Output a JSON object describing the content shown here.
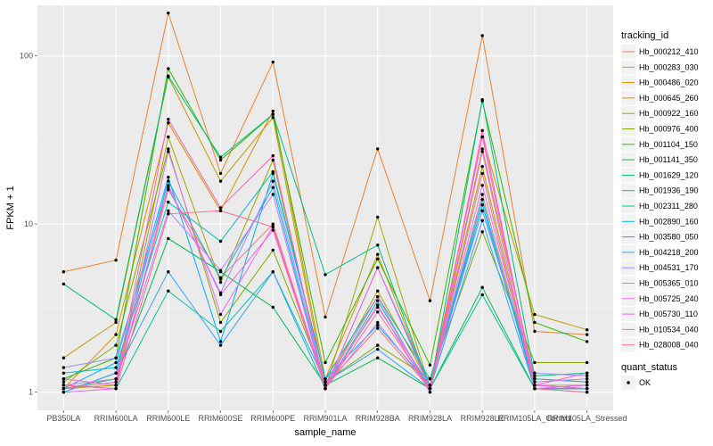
{
  "chart_data": {
    "type": "line",
    "title": "",
    "xlabel": "sample_name",
    "ylabel": "FPKM + 1",
    "yscale": "log10",
    "ylim": [
      0.78,
      200
    ],
    "y_ticks": [
      {
        "value": 1,
        "label": "1"
      },
      {
        "value": 10,
        "label": "10"
      },
      {
        "value": 100,
        "label": "100"
      }
    ],
    "grid": true,
    "legend_position": "right",
    "categories": [
      "PB350LA",
      "RRIM600LA",
      "RRIM600LE",
      "RRIM600SE",
      "RRIM600PE",
      "RRIM901LA",
      "RRIM928BA",
      "RRIM928LA",
      "RRIM928LE",
      "RRIM105LA_Control",
      "RRIM105LA_Stressed"
    ],
    "category_labels": [
      "PB350LA",
      "RRIM600LA",
      "RRIM600LE",
      "RRIM600SE",
      "RRIM600PE",
      "RRIM901LA",
      "RRIM928BA",
      "RRIM928LA",
      "RRIM928LE",
      "RRIM105LA_Control",
      "RRIM105LA_Stressed"
    ],
    "legend_title": "tracking_id",
    "quant_status": {
      "title": "quant_status",
      "entries": [
        "OK"
      ]
    },
    "series": [
      {
        "name": "Hb_000212_410",
        "color": "#F8766D",
        "values": [
          1.05,
          1.1,
          16,
          4.8,
          10,
          1.1,
          2.4,
          1.05,
          15,
          1.1,
          1.1
        ]
      },
      {
        "name": "Hb_000283_030",
        "color": "#EA8331",
        "values": [
          5.2,
          6.1,
          180,
          20,
          92,
          2.8,
          28,
          3.5,
          132,
          2.3,
          2.2
        ]
      },
      {
        "name": "Hb_000486_020",
        "color": "#D89000",
        "values": [
          1.05,
          2.2,
          40,
          12,
          47,
          1.2,
          6.6,
          1.05,
          28,
          1.2,
          1.15
        ]
      },
      {
        "name": "Hb_000645_260",
        "color": "#C09B00",
        "values": [
          1.6,
          2.6,
          75,
          18,
          43,
          1.1,
          4,
          1.1,
          33,
          2.9,
          2.35
        ]
      },
      {
        "name": "Hb_000922_160",
        "color": "#A3A500",
        "values": [
          1.05,
          1.1,
          33,
          4.5,
          24,
          1.05,
          11,
          1.05,
          22,
          1.1,
          1.05
        ]
      },
      {
        "name": "Hb_000976_400",
        "color": "#7CAE00",
        "values": [
          1.15,
          1.9,
          28,
          2.6,
          7,
          1.15,
          1.9,
          1.2,
          9,
          1.5,
          1.5
        ]
      },
      {
        "name": "Hb_001104_150",
        "color": "#39B600",
        "values": [
          1.2,
          1.6,
          84,
          24,
          45,
          1.5,
          6.2,
          1.45,
          54,
          2.6,
          2.0
        ]
      },
      {
        "name": "Hb_001141_350",
        "color": "#00BB4E",
        "values": [
          1.05,
          1.2,
          8.2,
          5.2,
          3.2,
          1.1,
          1.6,
          1.05,
          4.2,
          1.05,
          1.05
        ]
      },
      {
        "name": "Hb_001629_120",
        "color": "#00BF7D",
        "values": [
          4.4,
          2.7,
          76,
          25,
          45,
          5,
          7.5,
          1.05,
          55,
          1.25,
          1.3
        ]
      },
      {
        "name": "Hb_001936_190",
        "color": "#00C1A3",
        "values": [
          1.1,
          1.05,
          4,
          2.3,
          5.2,
          1.05,
          3.5,
          1.05,
          3.8,
          1.05,
          1.05
        ]
      },
      {
        "name": "Hb_002311_280",
        "color": "#00BFC4",
        "values": [
          1.3,
          1.4,
          13.5,
          7.9,
          20.5,
          1.2,
          3.7,
          1.2,
          12,
          1.2,
          1.15
        ]
      },
      {
        "name": "Hb_002890_160",
        "color": "#00BAE0",
        "values": [
          1.0,
          1.3,
          18,
          4.7,
          16.5,
          1.05,
          5.5,
          1.1,
          14,
          1.05,
          1.1
        ]
      },
      {
        "name": "Hb_003580_050",
        "color": "#00B0F6",
        "values": [
          1.05,
          1.5,
          19,
          2.0,
          20,
          1.2,
          2.5,
          1.1,
          13,
          1.1,
          1.05
        ]
      },
      {
        "name": "Hb_004218_200",
        "color": "#35A2FF",
        "values": [
          1.0,
          1.3,
          5.2,
          1.9,
          5.2,
          1.15,
          1.8,
          1.05,
          10.5,
          1.05,
          1.0
        ]
      },
      {
        "name": "Hb_004531_170",
        "color": "#9590FF",
        "values": [
          1.4,
          1.6,
          16.5,
          3.9,
          18,
          1.1,
          3.2,
          1.1,
          12,
          1.3,
          1.25
        ]
      },
      {
        "name": "Hb_005365_010",
        "color": "#C77CFF",
        "values": [
          1.1,
          1.2,
          12,
          5.3,
          15,
          1.05,
          2.6,
          1.05,
          17,
          1.15,
          1.2
        ]
      },
      {
        "name": "Hb_005725_240",
        "color": "#E76BF3",
        "values": [
          1.0,
          1.05,
          27,
          2.9,
          9.7,
          1.1,
          3.7,
          1.0,
          27,
          1.05,
          1.1
        ]
      },
      {
        "name": "Hb_005730_110",
        "color": "#FA62DB",
        "values": [
          1.2,
          1.1,
          17,
          3.8,
          9.2,
          1.05,
          5.5,
          1.05,
          33,
          1.1,
          1.05
        ]
      },
      {
        "name": "Hb_010534_040",
        "color": "#FF62BC",
        "values": [
          1.05,
          1.15,
          42,
          12.5,
          25.5,
          1.05,
          3.3,
          1.0,
          36,
          1.1,
          1.3
        ]
      },
      {
        "name": "Hb_028008_040",
        "color": "#FF6C91",
        "values": [
          1.1,
          1.05,
          11.5,
          12,
          9.6,
          1.05,
          3.0,
          1.05,
          20,
          1.05,
          1.0
        ]
      }
    ]
  }
}
